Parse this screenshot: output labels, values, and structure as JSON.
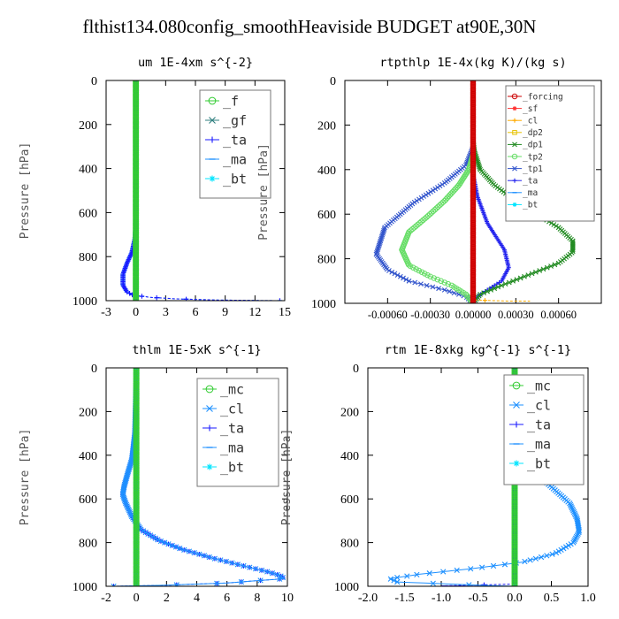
{
  "title": "flthist134.080config_smoothHeaviside  BUDGET at90E,30N",
  "chart_data": [
    {
      "type": "line",
      "title": "um  1E-4xm s^{-2}",
      "ylabel": "Pressure [hPa]",
      "xlim": [
        -3,
        15
      ],
      "ylim": [
        1000,
        0
      ],
      "xticks": [
        "-3",
        "0",
        "3",
        "6",
        "9",
        "12",
        "15"
      ],
      "xtick_values": [
        -3,
        0,
        3,
        6,
        9,
        12,
        15
      ],
      "yticks": [
        "0",
        "200",
        "400",
        "600",
        "800",
        "1000"
      ],
      "ytick_values": [
        0,
        200,
        400,
        600,
        800,
        1000
      ],
      "legend": "top-right",
      "legend_font": 15,
      "series": [
        {
          "name": "_f",
          "color": "#33cc33",
          "marker": "circle",
          "x": [
            0,
            0
          ],
          "y": [
            0,
            1000
          ]
        },
        {
          "name": "_gf",
          "color": "#2f7f7f",
          "marker": "x",
          "x": [
            0,
            0
          ],
          "y": [
            0,
            1000
          ]
        },
        {
          "name": "_ta",
          "color": "#1a1aff",
          "marker": "plus",
          "x": [
            0,
            0,
            -0.1,
            -0.4,
            -0.9,
            -1.3,
            -1.3,
            -0.9,
            -0.3,
            1.5,
            4.0,
            8.0,
            14.5
          ],
          "y": [
            0,
            650,
            720,
            780,
            830,
            880,
            930,
            960,
            975,
            985,
            992,
            997,
            1000
          ]
        },
        {
          "name": "_ma",
          "color": "#1e90ff",
          "marker": "dash",
          "x": [
            0,
            0,
            -0.1,
            -0.4,
            -0.9,
            -1.3,
            -1.3,
            -0.9,
            -0.3,
            1.5,
            4.0,
            8.0,
            14.5
          ],
          "y": [
            0,
            650,
            720,
            780,
            830,
            880,
            930,
            960,
            975,
            985,
            992,
            997,
            1000
          ]
        },
        {
          "name": "_bt",
          "color": "#00e5ff",
          "marker": "star",
          "x": [
            0,
            0
          ],
          "y": [
            0,
            1000
          ]
        }
      ]
    },
    {
      "type": "line",
      "title": "rtpthlp  1E-4x(kg K)/(kg s)",
      "ylabel": "Pressure [hPa]",
      "xlim": [
        -0.0009,
        0.0009
      ],
      "ylim": [
        1000,
        0
      ],
      "xticks": [
        "-0.00060",
        "-0.00030",
        "0.00000",
        "0.00030",
        "0.00060"
      ],
      "xtick_values": [
        -0.0006,
        -0.0003,
        0,
        0.0003,
        0.0006
      ],
      "yticks": [
        "0",
        "200",
        "400",
        "600",
        "800",
        "1000"
      ],
      "ytick_values": [
        0,
        200,
        400,
        600,
        800,
        1000
      ],
      "legend": "top-right",
      "legend_font": 9.5,
      "series": [
        {
          "name": "_forcing",
          "color": "#cc0000",
          "marker": "circle",
          "x": [
            0,
            0
          ],
          "y": [
            0,
            1000
          ]
        },
        {
          "name": "_sf",
          "color": "#ff3333",
          "marker": "star",
          "x": [
            0,
            0
          ],
          "y": [
            0,
            1000
          ]
        },
        {
          "name": "_cl",
          "color": "#ffaa00",
          "marker": "plus",
          "x": [
            0,
            0,
            0.00025,
            0.0004
          ],
          "y": [
            0,
            985,
            990,
            990
          ]
        },
        {
          "name": "_dp2",
          "color": "#e6c200",
          "marker": "square",
          "x": [
            0,
            0
          ],
          "y": [
            0,
            1000
          ]
        },
        {
          "name": "_dp1",
          "color": "#228b22",
          "marker": "x",
          "x": [
            0,
            1e-05,
            5e-05,
            0.00015,
            0.0003,
            0.00045,
            0.0006,
            0.0007,
            0.0007,
            0.0006,
            0.0004,
            0.0002,
            5e-05,
            0
          ],
          "y": [
            270,
            320,
            400,
            470,
            540,
            600,
            660,
            720,
            770,
            820,
            870,
            920,
            960,
            1000
          ]
        },
        {
          "name": "_tp2",
          "color": "#66dd66",
          "marker": "circle",
          "x": [
            0,
            -3e-05,
            -0.0001,
            -0.0002,
            -0.00032,
            -0.00045,
            -0.0005,
            -0.00045,
            -0.0003,
            -0.00015,
            -5e-05,
            0
          ],
          "y": [
            330,
            400,
            470,
            540,
            610,
            680,
            760,
            830,
            880,
            920,
            960,
            1000
          ]
        },
        {
          "name": "_tp1",
          "color": "#3355cc",
          "marker": "x",
          "x": [
            0,
            -5e-05,
            -0.0002,
            -0.00042,
            -0.00062,
            -0.00068,
            -0.0006,
            -0.00045,
            -0.0002,
            -5e-05,
            0
          ],
          "y": [
            300,
            380,
            460,
            550,
            660,
            780,
            850,
            900,
            940,
            970,
            1000
          ]
        },
        {
          "name": "_ta",
          "color": "#2222ee",
          "marker": "plus",
          "x": [
            0,
            3e-05,
            0.0001,
            0.00022,
            0.00025,
            0.0002,
            0.0001,
            3e-05,
            0
          ],
          "y": [
            420,
            520,
            640,
            760,
            840,
            900,
            940,
            970,
            1000
          ]
        },
        {
          "name": "_ma",
          "color": "#1e90ff",
          "marker": "dash",
          "x": [
            0,
            0
          ],
          "y": [
            0,
            1000
          ]
        },
        {
          "name": "_bt",
          "color": "#00e5ff",
          "marker": "star",
          "x": [
            0,
            0
          ],
          "y": [
            0,
            1000
          ]
        }
      ]
    },
    {
      "type": "line",
      "title": "thlm  1E-5xK s^{-1}",
      "ylabel": "Pressure [hPa]",
      "xlim": [
        -2,
        10
      ],
      "ylim": [
        1000,
        0
      ],
      "xticks": [
        "-2",
        "0",
        "2",
        "4",
        "6",
        "8",
        "10"
      ],
      "xtick_values": [
        -2,
        0,
        2,
        4,
        6,
        8,
        10
      ],
      "yticks": [
        "0",
        "200",
        "400",
        "600",
        "800",
        "1000"
      ],
      "ytick_values": [
        0,
        200,
        400,
        600,
        800,
        1000
      ],
      "legend": "top-right",
      "legend_font": 15,
      "series": [
        {
          "name": "_mc",
          "color": "#33cc33",
          "marker": "circle",
          "x": [
            0,
            0
          ],
          "y": [
            0,
            1000
          ]
        },
        {
          "name": "_cl",
          "color": "#1e90ff",
          "marker": "x",
          "x": [
            0,
            -0.1,
            -0.3,
            -0.6,
            -0.8,
            -0.9,
            -0.7,
            -0.3,
            0.3,
            1.5,
            3.0,
            5.0,
            7.0,
            8.5,
            9.5,
            9.8,
            6.0,
            2.0,
            -1.5
          ],
          "y": [
            0,
            300,
            420,
            490,
            540,
            580,
            620,
            680,
            740,
            790,
            830,
            870,
            905,
            930,
            950,
            965,
            985,
            995,
            1000
          ]
        },
        {
          "name": "_ta",
          "color": "#1a1aff",
          "marker": "plus",
          "x": [
            0,
            -0.1,
            -0.3,
            -0.6,
            -0.8,
            -0.9,
            -0.7,
            -0.3,
            0.3,
            1.5,
            3.0,
            5.0,
            7.0,
            8.5,
            9.5,
            9.8,
            6.0,
            2.0,
            -1.5
          ],
          "y": [
            0,
            300,
            420,
            490,
            540,
            580,
            620,
            680,
            740,
            790,
            830,
            870,
            905,
            930,
            950,
            965,
            985,
            995,
            1000
          ]
        },
        {
          "name": "_ma",
          "color": "#1e90ff",
          "marker": "dash",
          "x": [
            0,
            0
          ],
          "y": [
            0,
            1000
          ]
        },
        {
          "name": "_bt",
          "color": "#00e5ff",
          "marker": "star",
          "x": [
            0,
            0
          ],
          "y": [
            0,
            1000
          ]
        }
      ]
    },
    {
      "type": "line",
      "title": "rtm  1E-8xkg kg^{-1} s^{-1}",
      "ylabel": "Pressure [hPa]",
      "xlim": [
        -2.0,
        1.0
      ],
      "ylim": [
        1000,
        0
      ],
      "xticks": [
        "-2.0",
        "-1.5",
        "-1.0",
        "-0.5",
        "0.0",
        "0.5",
        "1.0"
      ],
      "xtick_values": [
        -2.0,
        -1.5,
        -1.0,
        -0.5,
        0.0,
        0.5,
        1.0
      ],
      "yticks": [
        "0",
        "200",
        "400",
        "600",
        "800",
        "1000"
      ],
      "ytick_values": [
        0,
        200,
        400,
        600,
        800,
        1000
      ],
      "legend": "top-right",
      "legend_font": 15,
      "series": [
        {
          "name": "_mc",
          "color": "#33cc33",
          "marker": "circle",
          "x": [
            0,
            0
          ],
          "y": [
            0,
            1000
          ]
        },
        {
          "name": "_cl",
          "color": "#1e90ff",
          "marker": "x",
          "x": [
            0,
            0.05,
            0.08,
            0.12,
            0.2,
            0.35,
            0.55,
            0.75,
            0.85,
            0.88,
            0.8,
            0.55,
            0.1,
            -0.6,
            -1.3,
            -1.7,
            -1.6,
            -0.5,
            0
          ],
          "y": [
            100,
            200,
            300,
            400,
            450,
            500,
            560,
            620,
            690,
            750,
            800,
            850,
            890,
            920,
            945,
            965,
            980,
            995,
            1000
          ]
        },
        {
          "name": "_ta",
          "color": "#1a1aff",
          "marker": "plus",
          "x": [
            0,
            0,
            -1.0,
            0
          ],
          "y": [
            0,
            990,
            998,
            1000
          ]
        },
        {
          "name": "_ma",
          "color": "#1e90ff",
          "marker": "dash",
          "x": [
            0,
            0
          ],
          "y": [
            0,
            1000
          ]
        },
        {
          "name": "_bt",
          "color": "#00e5ff",
          "marker": "star",
          "x": [
            0,
            0
          ],
          "y": [
            0,
            1000
          ]
        }
      ]
    }
  ]
}
